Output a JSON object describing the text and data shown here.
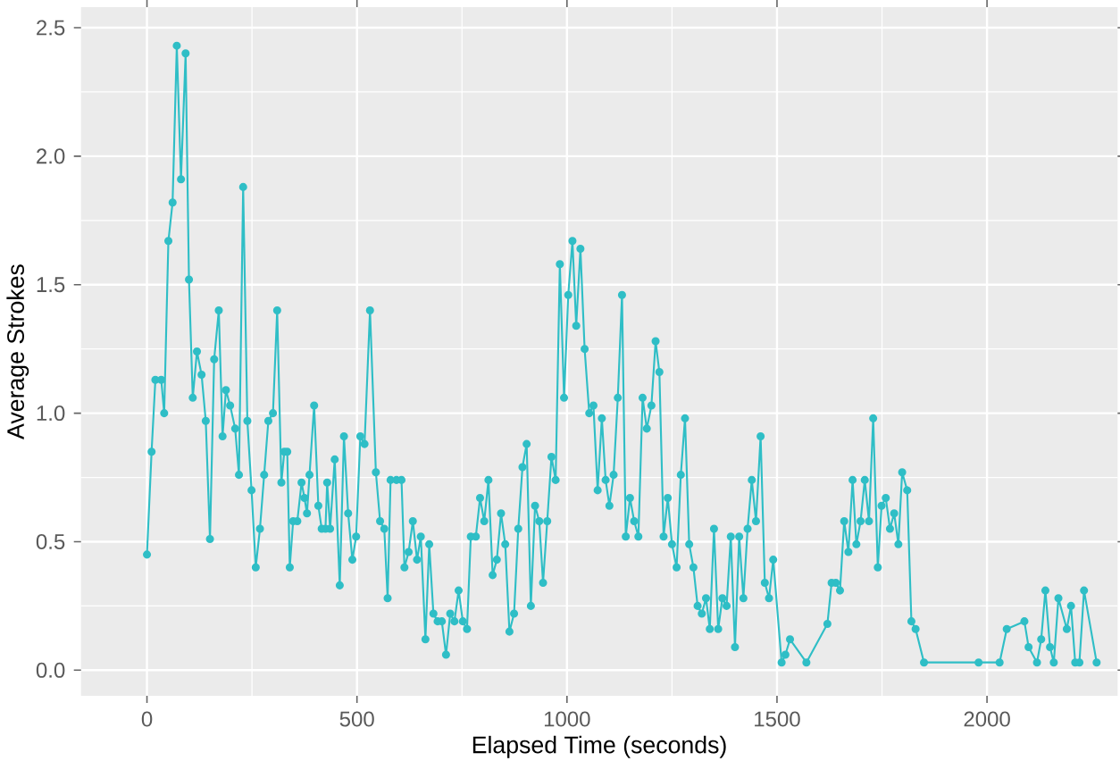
{
  "chart_data": {
    "type": "line",
    "xlabel": "Elapsed Time (seconds)",
    "ylabel": "Average Strokes",
    "color": "#2fbec6",
    "marker": "circle",
    "grid": true,
    "xlim": [
      -157,
      2311
    ],
    "ylim": [
      -0.1,
      2.58
    ],
    "xticks": [
      0,
      500,
      1000,
      1500,
      2000
    ],
    "yticks": [
      {
        "value": 0,
        "label": "0.0"
      },
      {
        "value": 0.5,
        "label": "0.5"
      },
      {
        "value": 1,
        "label": "1.0"
      },
      {
        "value": 1.5,
        "label": "1.5"
      },
      {
        "value": 2,
        "label": "2.0"
      },
      {
        "value": 2.5,
        "label": "2.5"
      }
    ],
    "x": [
      0,
      11,
      20,
      34,
      41,
      51,
      61,
      71,
      81,
      92,
      100,
      109,
      119,
      130,
      140,
      150,
      160,
      171,
      180,
      188,
      198,
      210,
      219,
      229,
      239,
      249,
      259,
      269,
      279,
      289,
      300,
      310,
      320,
      327,
      334,
      340,
      348,
      358,
      368,
      375,
      381,
      387,
      398,
      408,
      416,
      425,
      429,
      436,
      447,
      459,
      469,
      479,
      489,
      498,
      508,
      518,
      531,
      545,
      555,
      565,
      573,
      580,
      594,
      606,
      613,
      623,
      633,
      643,
      652,
      663,
      672,
      682,
      692,
      702,
      712,
      722,
      732,
      742,
      752,
      762,
      771,
      783,
      793,
      803,
      813,
      823,
      833,
      843,
      853,
      863,
      874,
      884,
      894,
      904,
      914,
      924,
      934,
      943,
      953,
      963,
      973,
      983,
      993,
      1003,
      1013,
      1022,
      1032,
      1042,
      1053,
      1063,
      1073,
      1083,
      1092,
      1101,
      1111,
      1121,
      1131,
      1140,
      1150,
      1160,
      1170,
      1180,
      1190,
      1201,
      1211,
      1220,
      1230,
      1240,
      1250,
      1261,
      1271,
      1281,
      1291,
      1301,
      1311,
      1321,
      1331,
      1340,
      1350,
      1360,
      1370,
      1380,
      1390,
      1400,
      1410,
      1420,
      1430,
      1440,
      1450,
      1461,
      1471,
      1481,
      1491,
      1511,
      1520,
      1531,
      1570,
      1620,
      1630,
      1640,
      1650,
      1660,
      1670,
      1680,
      1689,
      1699,
      1709,
      1719,
      1729,
      1740,
      1749,
      1759,
      1769,
      1779,
      1789,
      1798,
      1810,
      1820,
      1830,
      1850,
      1980,
      2030,
      2047,
      2089,
      2099,
      2119,
      2129,
      2139,
      2150,
      2159,
      2170,
      2190,
      2200,
      2210,
      2220,
      2231,
      2261
    ],
    "values": [
      0.45,
      0.85,
      1.13,
      1.13,
      1.0,
      1.67,
      1.82,
      2.43,
      1.91,
      2.4,
      1.52,
      1.06,
      1.24,
      1.15,
      0.97,
      0.51,
      1.21,
      1.4,
      0.91,
      1.09,
      1.03,
      0.94,
      0.76,
      1.88,
      0.97,
      0.7,
      0.4,
      0.55,
      0.76,
      0.97,
      1.0,
      1.4,
      0.73,
      0.85,
      0.85,
      0.4,
      0.58,
      0.58,
      0.73,
      0.67,
      0.61,
      0.76,
      1.03,
      0.64,
      0.55,
      0.55,
      0.73,
      0.55,
      0.82,
      0.33,
      0.91,
      0.61,
      0.43,
      0.52,
      0.91,
      0.88,
      1.4,
      0.77,
      0.58,
      0.55,
      0.28,
      0.74,
      0.74,
      0.74,
      0.4,
      0.46,
      0.58,
      0.43,
      0.52,
      0.12,
      0.49,
      0.22,
      0.19,
      0.19,
      0.06,
      0.22,
      0.19,
      0.31,
      0.19,
      0.16,
      0.52,
      0.52,
      0.67,
      0.58,
      0.74,
      0.37,
      0.43,
      0.61,
      0.49,
      0.15,
      0.22,
      0.55,
      0.79,
      0.88,
      0.25,
      0.64,
      0.58,
      0.34,
      0.58,
      0.83,
      0.74,
      1.58,
      1.06,
      1.46,
      1.67,
      1.34,
      1.64,
      1.25,
      1.0,
      1.03,
      0.7,
      0.98,
      0.74,
      0.64,
      0.76,
      1.06,
      1.46,
      0.52,
      0.67,
      0.58,
      0.52,
      1.06,
      0.94,
      1.03,
      1.28,
      1.16,
      0.52,
      0.67,
      0.49,
      0.4,
      0.76,
      0.98,
      0.49,
      0.4,
      0.25,
      0.22,
      0.28,
      0.16,
      0.55,
      0.16,
      0.28,
      0.25,
      0.52,
      0.09,
      0.52,
      0.28,
      0.55,
      0.74,
      0.58,
      0.91,
      0.34,
      0.28,
      0.43,
      0.03,
      0.06,
      0.12,
      0.03,
      0.18,
      0.34,
      0.34,
      0.31,
      0.58,
      0.46,
      0.74,
      0.49,
      0.58,
      0.74,
      0.58,
      0.98,
      0.4,
      0.64,
      0.67,
      0.55,
      0.61,
      0.49,
      0.77,
      0.7,
      0.19,
      0.16,
      0.03,
      0.03,
      0.03,
      0.16,
      0.19,
      0.09,
      0.03,
      0.12,
      0.31,
      0.09,
      0.03,
      0.28,
      0.16,
      0.25,
      0.03,
      0.03,
      0.31,
      0.03
    ]
  }
}
